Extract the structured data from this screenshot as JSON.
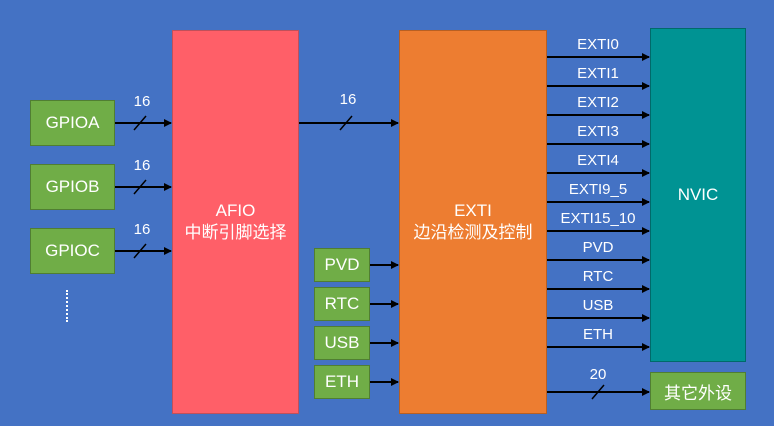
{
  "gpio_ports": [
    "GPIOA",
    "GPIOB",
    "GPIOC"
  ],
  "gpio_bus_width": "16",
  "afio": {
    "title": "AFIO",
    "subtitle": "中断引脚选择"
  },
  "afio_to_exti_width": "16",
  "exti": {
    "title": "EXTI",
    "subtitle": "边沿检测及控制"
  },
  "peripheral_inputs": [
    "PVD",
    "RTC",
    "USB",
    "ETH"
  ],
  "nvic_lines": [
    "EXTI0",
    "EXTI1",
    "EXTI2",
    "EXTI3",
    "EXTI4",
    "EXTI9_5",
    "EXTI15_10",
    "PVD",
    "RTC",
    "USB",
    "ETH"
  ],
  "nvic": {
    "title": "NVIC"
  },
  "other_bus_width": "20",
  "other_peripherals": {
    "title": "其它外设"
  },
  "colors": {
    "background": "#4472c4",
    "gpio": "#70ad47",
    "afio": "#ff5f68",
    "exti": "#ed7d31",
    "nvic": "#009393",
    "wire": "#000000"
  }
}
